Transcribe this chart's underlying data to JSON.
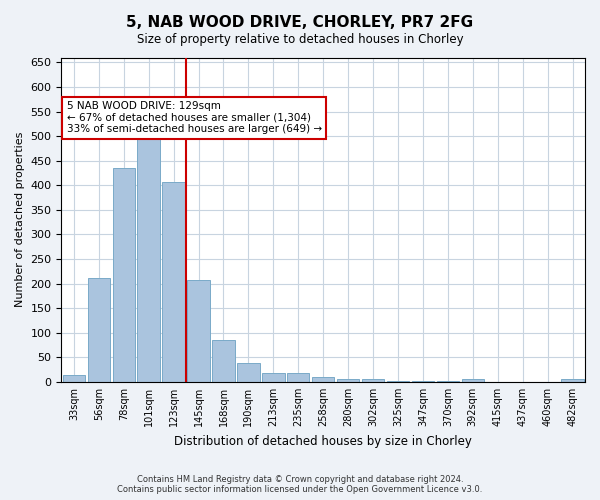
{
  "title": "5, NAB WOOD DRIVE, CHORLEY, PR7 2FG",
  "subtitle": "Size of property relative to detached houses in Chorley",
  "xlabel": "Distribution of detached houses by size in Chorley",
  "ylabel": "Number of detached properties",
  "categories": [
    "33sqm",
    "56sqm",
    "78sqm",
    "101sqm",
    "123sqm",
    "145sqm",
    "168sqm",
    "190sqm",
    "213sqm",
    "235sqm",
    "258sqm",
    "280sqm",
    "302sqm",
    "325sqm",
    "347sqm",
    "370sqm",
    "392sqm",
    "415sqm",
    "437sqm",
    "460sqm",
    "482sqm"
  ],
  "values": [
    15,
    212,
    435,
    503,
    407,
    207,
    86,
    39,
    18,
    18,
    11,
    6,
    5,
    1,
    1,
    1,
    5,
    0,
    0,
    0,
    5
  ],
  "bar_color": "#aac4de",
  "bar_edge_color": "#7aaac8",
  "vline_color": "#cc0000",
  "annotation_text": "5 NAB WOOD DRIVE: 129sqm\n← 67% of detached houses are smaller (1,304)\n33% of semi-detached houses are larger (649) →",
  "annotation_box_color": "#ffffff",
  "annotation_box_edge": "#cc0000",
  "ylim": [
    0,
    660
  ],
  "yticks": [
    0,
    50,
    100,
    150,
    200,
    250,
    300,
    350,
    400,
    450,
    500,
    550,
    600,
    650
  ],
  "footer1": "Contains HM Land Registry data © Crown copyright and database right 2024.",
  "footer2": "Contains public sector information licensed under the Open Government Licence v3.0.",
  "bg_color": "#eef2f7",
  "plot_bg_color": "#ffffff",
  "grid_color": "#c8d4e0"
}
